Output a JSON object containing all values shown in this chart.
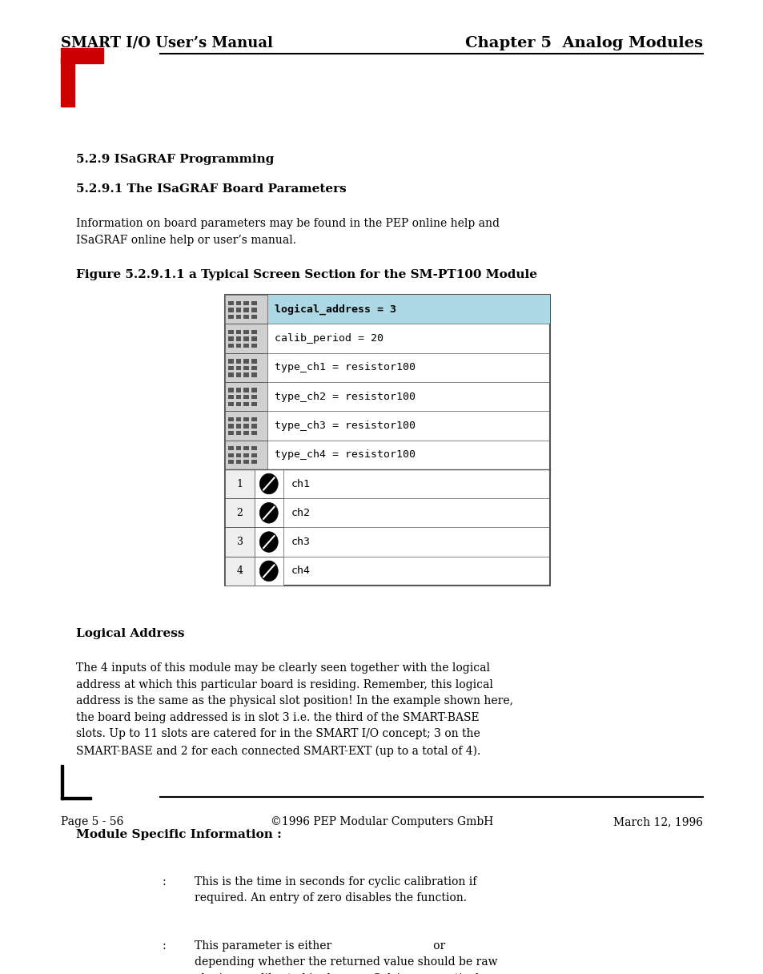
{
  "page_width": 9.54,
  "page_height": 12.16,
  "bg_color": "#ffffff",
  "header_left": "SMART I/O User’s Manual",
  "header_right": "Chapter 5  Analog Modules",
  "footer_left": "Page 5 - 56",
  "footer_center": "©1996 PEP Modular Computers GmbH",
  "footer_right": "March 12, 1996",
  "section_title": "5.2.9 ISaGRAF Programming",
  "subsection_title": "5.2.9.1 The ISaGRAF Board Parameters",
  "intro_text": "Information on board parameters may be found in the PEP online help and\nISaGRAF online help or user’s manual.",
  "figure_title": "Figure 5.2.9.1.1 a Typical Screen Section for the SM-PT100 Module",
  "table_rows_top": [
    "logical_address = 3",
    "calib_period = 20",
    "type_ch1 = resistor100",
    "type_ch2 = resistor100",
    "type_ch3 = resistor100",
    "type_ch4 = resistor100"
  ],
  "table_rows_bottom": [
    "ch1",
    "ch2",
    "ch3",
    "ch4"
  ],
  "logical_address_section": "Logical Address",
  "logical_address_text": "The 4 inputs of this module may be clearly seen together with the logical\naddress at which this particular board is residing. Remember, this logical\naddress is the same as the physical slot position! In the example shown here,\nthe board being addressed is in slot 3 i.e. the third of the SMART-BASE\nslots. Up to 11 slots are catered for in the SMART I/O concept; 3 on the\nSMART-BASE and 2 for each connected SMART-EXT (up to a total of 4).",
  "module_specific_section": "Module Specific Information :",
  "bullet1_text": "This is the time in seconds for cyclic calibration if\nrequired. An entry of zero disables the function.",
  "bullet2_text": "This parameter is either                             or\ndepending whether the returned value should be raw\nohmic or calibrated in degrees Celsius respectively.",
  "red_color": "#cc0000",
  "highlight_color": "#add8e6",
  "table_border_color": "#555555"
}
